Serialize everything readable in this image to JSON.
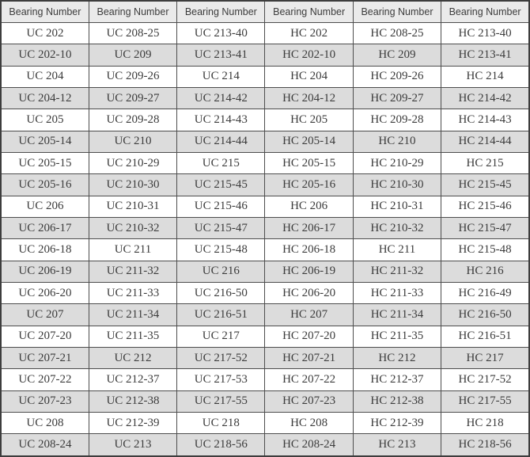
{
  "colors": {
    "header_bg": "#eaeaea",
    "row_bg": "#ffffff",
    "row_alt_bg": "#dcdcdc",
    "border": "#4d4d4d",
    "outer_border": "#3d3d3d",
    "text": "#3c3c3c"
  },
  "table": {
    "headers": [
      "Bearing Number",
      "Bearing Number",
      "Bearing Number",
      "Bearing Number",
      "Bearing Number",
      "Bearing Number"
    ],
    "rows": [
      [
        "UC 202",
        "UC 208-25",
        "UC 213-40",
        "HC 202",
        "HC 208-25",
        "HC 213-40"
      ],
      [
        "UC 202-10",
        "UC 209",
        "UC 213-41",
        "HC 202-10",
        "HC 209",
        "HC 213-41"
      ],
      [
        "UC 204",
        "UC 209-26",
        "UC 214",
        "HC 204",
        "HC 209-26",
        "HC 214"
      ],
      [
        "UC 204-12",
        "UC 209-27",
        "UC 214-42",
        "HC 204-12",
        "HC 209-27",
        "HC 214-42"
      ],
      [
        "UC 205",
        "UC 209-28",
        "UC 214-43",
        "HC 205",
        "HC 209-28",
        "HC 214-43"
      ],
      [
        "UC 205-14",
        "UC 210",
        "UC 214-44",
        "HC 205-14",
        "HC 210",
        "HC 214-44"
      ],
      [
        "UC 205-15",
        "UC 210-29",
        "UC 215",
        "HC 205-15",
        "HC 210-29",
        "HC 215"
      ],
      [
        "UC 205-16",
        "UC 210-30",
        "UC 215-45",
        "HC 205-16",
        "HC 210-30",
        "HC 215-45"
      ],
      [
        "UC 206",
        "UC 210-31",
        "UC 215-46",
        "HC 206",
        "HC 210-31",
        "HC 215-46"
      ],
      [
        "UC 206-17",
        "UC 210-32",
        "UC 215-47",
        "HC 206-17",
        "HC 210-32",
        "HC 215-47"
      ],
      [
        "UC 206-18",
        "UC 211",
        "UC 215-48",
        "HC 206-18",
        "HC 211",
        "HC 215-48"
      ],
      [
        "UC 206-19",
        "UC 211-32",
        "UC 216",
        "HC 206-19",
        "HC 211-32",
        "HC 216"
      ],
      [
        "UC 206-20",
        "UC 211-33",
        "UC 216-50",
        "HC 206-20",
        "HC 211-33",
        "HC 216-49"
      ],
      [
        "UC 207",
        "UC 211-34",
        "UC 216-51",
        "HC 207",
        "HC 211-34",
        "HC 216-50"
      ],
      [
        "UC 207-20",
        "UC 211-35",
        "UC 217",
        "HC 207-20",
        "HC 211-35",
        "HC 216-51"
      ],
      [
        "UC 207-21",
        "UC 212",
        "UC 217-52",
        "HC 207-21",
        "HC 212",
        "HC 217"
      ],
      [
        "UC 207-22",
        "UC 212-37",
        "UC 217-53",
        "HC 207-22",
        "HC 212-37",
        "HC 217-52"
      ],
      [
        "UC 207-23",
        "UC 212-38",
        "UC 217-55",
        "HC 207-23",
        "HC 212-38",
        "HC 217-55"
      ],
      [
        "UC 208",
        "UC 212-39",
        "UC 218",
        "HC 208",
        "HC 212-39",
        "HC 218"
      ],
      [
        "UC 208-24",
        "UC 213",
        "UC 218-56",
        "HC 208-24",
        "HC 213",
        "HC 218-56"
      ]
    ]
  }
}
